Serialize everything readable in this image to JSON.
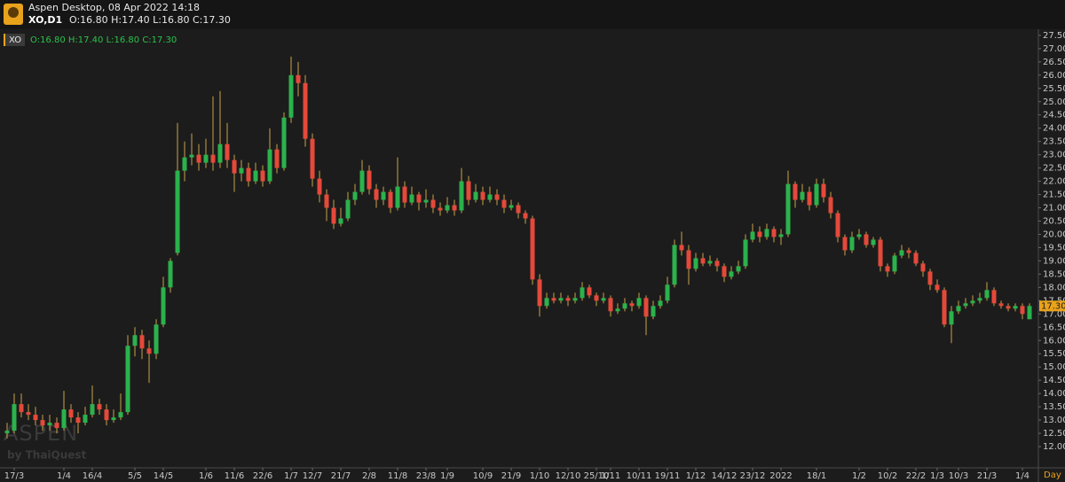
{
  "header": {
    "title": "Aspen Desktop, 08 Apr 2022 14:18",
    "symbol": "XO,D1",
    "quote": "O:16.80 H:17.40 L:16.80 C:17.30"
  },
  "watermark": {
    "brand": "ASPEN",
    "by": "by ThaiQuest"
  },
  "chart_data": {
    "type": "candlestick",
    "symbol": "XO",
    "legend": "O:16.80 H:17.40 L:16.80 C:17.30",
    "timeframe": "Day",
    "up_color": "#2bb24c",
    "down_color": "#e5493a",
    "wick_color": "#c9a24a",
    "last_label": {
      "value": 17.3,
      "label": "17.30"
    },
    "ylim": [
      11.2,
      27.73
    ],
    "yticks": [
      {
        "value": 12,
        "label": "12.00"
      },
      {
        "value": 12.5,
        "label": "12.50"
      },
      {
        "value": 13,
        "label": "13.00"
      },
      {
        "value": 13.5,
        "label": "13.50"
      },
      {
        "value": 14,
        "label": "14.00"
      },
      {
        "value": 14.5,
        "label": "14.50"
      },
      {
        "value": 15,
        "label": "15.00"
      },
      {
        "value": 15.5,
        "label": "15.50"
      },
      {
        "value": 16,
        "label": "16.00"
      },
      {
        "value": 16.5,
        "label": "16.50"
      },
      {
        "value": 17,
        "label": "17.00"
      },
      {
        "value": 17.5,
        "label": "17.50"
      },
      {
        "value": 18,
        "label": "18.00"
      },
      {
        "value": 18.5,
        "label": "18.50"
      },
      {
        "value": 19,
        "label": "19.00"
      },
      {
        "value": 19.5,
        "label": "19.50"
      },
      {
        "value": 20,
        "label": "20.00"
      },
      {
        "value": 20.5,
        "label": "20.50"
      },
      {
        "value": 21,
        "label": "21.00"
      },
      {
        "value": 21.5,
        "label": "21.50"
      },
      {
        "value": 22,
        "label": "22.00"
      },
      {
        "value": 22.5,
        "label": "22.50"
      },
      {
        "value": 23,
        "label": "23.00"
      },
      {
        "value": 23.5,
        "label": "23.50"
      },
      {
        "value": 24,
        "label": "24.00"
      },
      {
        "value": 24.5,
        "label": "24.50"
      },
      {
        "value": 25,
        "label": "25.00"
      },
      {
        "value": 25.5,
        "label": "25.50"
      },
      {
        "value": 26,
        "label": "26.00"
      },
      {
        "value": 26.5,
        "label": "26.50"
      },
      {
        "value": 27,
        "label": "27.00"
      },
      {
        "value": 27.5,
        "label": "27.50"
      }
    ],
    "categories": [
      null,
      "17/3",
      null,
      null,
      null,
      null,
      null,
      null,
      "1/4",
      null,
      null,
      null,
      "16/4",
      null,
      null,
      null,
      null,
      null,
      "5/5",
      null,
      null,
      null,
      "14/5",
      null,
      null,
      null,
      null,
      null,
      "1/6",
      null,
      null,
      null,
      "11/6",
      null,
      null,
      null,
      "22/6",
      null,
      null,
      null,
      "1/7",
      null,
      null,
      "12/7",
      null,
      null,
      null,
      "21/7",
      null,
      null,
      null,
      "2/8",
      null,
      null,
      null,
      "11/8",
      null,
      null,
      null,
      "23/8",
      null,
      null,
      "1/9",
      null,
      null,
      null,
      null,
      "10/9",
      null,
      null,
      null,
      "21/9",
      null,
      null,
      null,
      "1/10",
      null,
      null,
      null,
      "12/10",
      null,
      null,
      null,
      "25/10",
      null,
      "1/11",
      null,
      null,
      null,
      "10/11",
      null,
      null,
      null,
      "19/11",
      null,
      null,
      null,
      "1/12",
      null,
      null,
      null,
      "14/12",
      null,
      null,
      null,
      "23/12",
      null,
      null,
      null,
      "2022",
      null,
      null,
      null,
      null,
      "18/1",
      null,
      null,
      null,
      null,
      null,
      "1/2",
      null,
      null,
      null,
      "10/2",
      null,
      null,
      null,
      "22/2",
      null,
      null,
      "1/3",
      null,
      null,
      "10/3",
      null,
      null,
      null,
      "21/3",
      null,
      null,
      null,
      null,
      "1/4",
      null
    ],
    "ohlc": [
      [
        12.5,
        12.9,
        12.3,
        12.6
      ],
      [
        12.6,
        14.0,
        12.5,
        13.6
      ],
      [
        13.6,
        14.0,
        13.1,
        13.3
      ],
      [
        13.3,
        13.6,
        13.0,
        13.2
      ],
      [
        13.2,
        13.5,
        12.8,
        13.0
      ],
      [
        13.0,
        13.2,
        12.6,
        12.8
      ],
      [
        12.8,
        13.2,
        12.6,
        12.9
      ],
      [
        12.9,
        13.1,
        12.5,
        12.7
      ],
      [
        12.7,
        14.1,
        12.6,
        13.4
      ],
      [
        13.4,
        13.6,
        12.9,
        13.1
      ],
      [
        13.1,
        13.3,
        12.5,
        12.9
      ],
      [
        12.9,
        13.5,
        12.8,
        13.2
      ],
      [
        13.2,
        14.3,
        13.1,
        13.6
      ],
      [
        13.6,
        13.8,
        13.2,
        13.4
      ],
      [
        13.4,
        13.6,
        12.8,
        13.0
      ],
      [
        13.0,
        13.4,
        12.9,
        13.1
      ],
      [
        13.1,
        14.0,
        13.0,
        13.3
      ],
      [
        13.3,
        16.2,
        13.2,
        15.8
      ],
      [
        15.8,
        16.5,
        15.4,
        16.2
      ],
      [
        16.2,
        16.4,
        15.3,
        15.7
      ],
      [
        15.7,
        16.0,
        14.4,
        15.5
      ],
      [
        15.5,
        16.8,
        15.3,
        16.6
      ],
      [
        16.6,
        18.4,
        16.5,
        18.0
      ],
      [
        18.0,
        19.1,
        17.8,
        19.0
      ],
      [
        19.3,
        24.2,
        19.2,
        22.4
      ],
      [
        22.4,
        23.5,
        22.0,
        22.9
      ],
      [
        22.9,
        23.8,
        22.6,
        23.0
      ],
      [
        23.0,
        23.4,
        22.4,
        22.7
      ],
      [
        22.7,
        23.6,
        22.5,
        23.0
      ],
      [
        23.0,
        25.2,
        22.4,
        22.7
      ],
      [
        22.7,
        25.4,
        22.5,
        23.4
      ],
      [
        23.4,
        24.2,
        22.5,
        22.8
      ],
      [
        22.8,
        23.0,
        21.6,
        22.3
      ],
      [
        22.3,
        22.8,
        22.0,
        22.5
      ],
      [
        22.5,
        22.7,
        21.8,
        22.0
      ],
      [
        22.0,
        22.7,
        21.9,
        22.4
      ],
      [
        22.4,
        22.6,
        21.8,
        22.0
      ],
      [
        22.0,
        24.0,
        21.9,
        23.2
      ],
      [
        23.2,
        23.4,
        22.3,
        22.5
      ],
      [
        22.5,
        24.6,
        22.4,
        24.4
      ],
      [
        24.4,
        26.7,
        24.2,
        26.0
      ],
      [
        26.0,
        26.5,
        25.2,
        25.7
      ],
      [
        25.7,
        26.0,
        23.3,
        23.6
      ],
      [
        23.6,
        23.8,
        21.8,
        22.1
      ],
      [
        22.1,
        22.4,
        21.2,
        21.5
      ],
      [
        21.5,
        21.7,
        20.5,
        21.0
      ],
      [
        21.0,
        21.3,
        20.2,
        20.4
      ],
      [
        20.4,
        21.0,
        20.3,
        20.6
      ],
      [
        20.6,
        21.6,
        20.5,
        21.3
      ],
      [
        21.3,
        21.9,
        21.1,
        21.6
      ],
      [
        21.6,
        22.8,
        21.5,
        22.4
      ],
      [
        22.4,
        22.6,
        21.5,
        21.7
      ],
      [
        21.7,
        21.9,
        21.0,
        21.3
      ],
      [
        21.3,
        21.8,
        21.1,
        21.6
      ],
      [
        21.6,
        21.7,
        20.8,
        21.0
      ],
      [
        21.0,
        22.9,
        20.9,
        21.8
      ],
      [
        21.8,
        22.0,
        21.0,
        21.2
      ],
      [
        21.2,
        21.8,
        21.1,
        21.5
      ],
      [
        21.5,
        21.6,
        20.9,
        21.2
      ],
      [
        21.2,
        21.7,
        21.0,
        21.3
      ],
      [
        21.3,
        21.5,
        20.8,
        21.0
      ],
      [
        21.0,
        21.2,
        20.7,
        20.9
      ],
      [
        20.9,
        21.4,
        20.8,
        21.1
      ],
      [
        21.1,
        21.3,
        20.7,
        20.9
      ],
      [
        20.9,
        22.5,
        20.8,
        22.0
      ],
      [
        22.0,
        22.2,
        21.1,
        21.3
      ],
      [
        21.3,
        21.9,
        21.2,
        21.6
      ],
      [
        21.6,
        21.8,
        21.1,
        21.3
      ],
      [
        21.3,
        21.8,
        21.2,
        21.5
      ],
      [
        21.5,
        21.7,
        21.1,
        21.3
      ],
      [
        21.3,
        21.5,
        20.8,
        21.0
      ],
      [
        21.0,
        21.3,
        20.9,
        21.1
      ],
      [
        21.1,
        21.2,
        20.6,
        20.8
      ],
      [
        20.8,
        20.9,
        20.4,
        20.6
      ],
      [
        20.6,
        20.7,
        18.1,
        18.3
      ],
      [
        18.3,
        18.5,
        16.9,
        17.3
      ],
      [
        17.3,
        17.8,
        17.2,
        17.6
      ],
      [
        17.6,
        17.8,
        17.4,
        17.5
      ],
      [
        17.5,
        17.8,
        17.4,
        17.6
      ],
      [
        17.6,
        17.7,
        17.3,
        17.5
      ],
      [
        17.5,
        17.8,
        17.4,
        17.6
      ],
      [
        17.6,
        18.2,
        17.5,
        18.0
      ],
      [
        18.0,
        18.1,
        17.6,
        17.7
      ],
      [
        17.7,
        17.8,
        17.3,
        17.5
      ],
      [
        17.5,
        17.8,
        17.4,
        17.6
      ],
      [
        17.6,
        17.7,
        16.9,
        17.1
      ],
      [
        17.1,
        17.4,
        17.0,
        17.2
      ],
      [
        17.2,
        17.6,
        17.1,
        17.4
      ],
      [
        17.4,
        17.5,
        17.1,
        17.3
      ],
      [
        17.3,
        17.8,
        17.2,
        17.6
      ],
      [
        17.6,
        17.7,
        16.2,
        16.9
      ],
      [
        16.9,
        17.5,
        16.8,
        17.3
      ],
      [
        17.3,
        17.7,
        17.2,
        17.5
      ],
      [
        17.5,
        18.4,
        17.4,
        18.1
      ],
      [
        18.1,
        19.8,
        18.0,
        19.6
      ],
      [
        19.6,
        20.1,
        19.2,
        19.4
      ],
      [
        19.4,
        19.6,
        18.1,
        18.7
      ],
      [
        18.7,
        19.3,
        18.6,
        19.1
      ],
      [
        19.1,
        19.3,
        18.8,
        18.9
      ],
      [
        18.9,
        19.2,
        18.8,
        19.0
      ],
      [
        19.0,
        19.1,
        18.6,
        18.8
      ],
      [
        18.8,
        18.9,
        18.2,
        18.4
      ],
      [
        18.4,
        18.8,
        18.3,
        18.6
      ],
      [
        18.6,
        19.0,
        18.5,
        18.8
      ],
      [
        18.8,
        20.0,
        18.7,
        19.8
      ],
      [
        19.8,
        20.4,
        19.7,
        20.1
      ],
      [
        20.1,
        20.3,
        19.7,
        19.9
      ],
      [
        19.9,
        20.4,
        19.8,
        20.2
      ],
      [
        20.2,
        20.3,
        19.7,
        19.9
      ],
      [
        19.9,
        20.2,
        19.6,
        20.0
      ],
      [
        20.0,
        22.4,
        19.9,
        21.9
      ],
      [
        21.9,
        22.0,
        21.0,
        21.3
      ],
      [
        21.3,
        21.9,
        21.2,
        21.6
      ],
      [
        21.6,
        21.8,
        20.9,
        21.1
      ],
      [
        21.1,
        22.1,
        21.0,
        21.9
      ],
      [
        21.9,
        22.1,
        21.2,
        21.4
      ],
      [
        21.4,
        21.6,
        20.6,
        20.8
      ],
      [
        20.8,
        20.9,
        19.7,
        19.9
      ],
      [
        19.9,
        20.0,
        19.2,
        19.4
      ],
      [
        19.4,
        20.1,
        19.3,
        19.9
      ],
      [
        19.9,
        20.2,
        19.8,
        20.0
      ],
      [
        20.0,
        20.1,
        19.5,
        19.6
      ],
      [
        19.6,
        19.9,
        19.5,
        19.8
      ],
      [
        19.8,
        19.9,
        18.6,
        18.8
      ],
      [
        18.8,
        18.9,
        18.4,
        18.6
      ],
      [
        18.6,
        19.3,
        18.5,
        19.2
      ],
      [
        19.2,
        19.6,
        19.1,
        19.4
      ],
      [
        19.4,
        19.5,
        19.1,
        19.3
      ],
      [
        19.3,
        19.4,
        18.8,
        18.9
      ],
      [
        18.9,
        19.0,
        18.4,
        18.6
      ],
      [
        18.6,
        18.7,
        17.9,
        18.1
      ],
      [
        18.1,
        18.3,
        17.8,
        17.9
      ],
      [
        17.9,
        18.0,
        16.5,
        16.6
      ],
      [
        16.6,
        17.3,
        15.9,
        17.1
      ],
      [
        17.1,
        17.5,
        17.0,
        17.3
      ],
      [
        17.3,
        17.6,
        17.2,
        17.4
      ],
      [
        17.4,
        17.7,
        17.3,
        17.5
      ],
      [
        17.5,
        17.8,
        17.4,
        17.6
      ],
      [
        17.6,
        18.2,
        17.5,
        17.9
      ],
      [
        17.9,
        18.0,
        17.3,
        17.4
      ],
      [
        17.4,
        17.5,
        17.2,
        17.3
      ],
      [
        17.3,
        17.4,
        17.1,
        17.2
      ],
      [
        17.2,
        17.4,
        17.1,
        17.3
      ],
      [
        17.3,
        17.4,
        16.8,
        17.0
      ],
      [
        16.8,
        17.4,
        16.8,
        17.3
      ]
    ]
  }
}
